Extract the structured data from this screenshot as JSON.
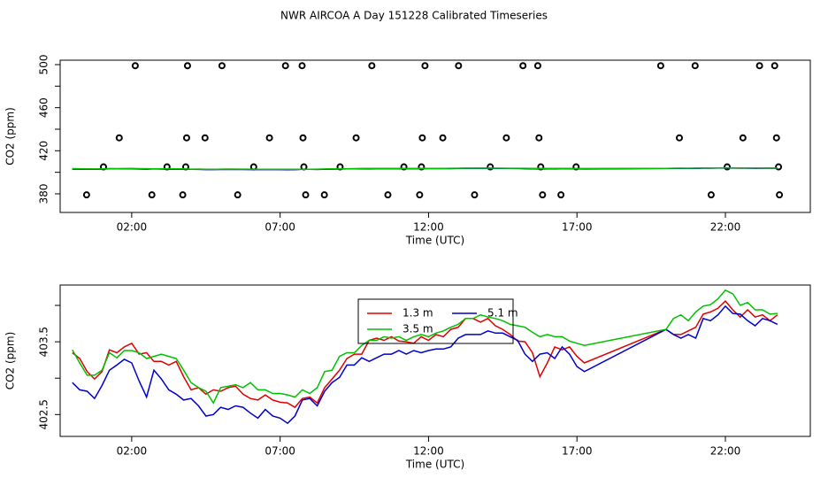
{
  "title": "NWR AIRCOA A  Day 151228  Calibrated Timeseries",
  "chart_data": [
    {
      "type": "scatter",
      "x_label": "Time (UTC)",
      "y_label": "CO2 (ppm)",
      "color": "#000000",
      "x": [
        2.12,
        3.88,
        5.04,
        7.18,
        7.74,
        10.09,
        11.88,
        13.01,
        15.18,
        15.68,
        19.82,
        20.98,
        23.15,
        23.66,
        1.58,
        3.85,
        4.47,
        6.64,
        7.77,
        9.56,
        11.79,
        12.48,
        14.62,
        15.72,
        20.45,
        22.59,
        23.72,
        1.05,
        3.19,
        3.82,
        6.11,
        7.8,
        9.02,
        11.17,
        11.76,
        14.08,
        15.78,
        16.97,
        22.06,
        23.79,
        0.48,
        2.68,
        3.72,
        5.57,
        7.86,
        8.49,
        10.63,
        11.7,
        13.55,
        15.84,
        16.46,
        21.52,
        23.82
      ],
      "values": [
        499,
        499,
        499,
        499,
        499,
        499,
        499,
        499,
        499,
        499,
        499,
        499,
        499,
        499,
        432,
        432,
        432,
        432,
        432,
        432,
        432,
        432,
        432,
        432,
        432,
        432,
        432,
        405,
        405,
        405,
        405,
        405,
        405,
        405,
        405,
        405,
        405,
        405,
        405,
        405,
        379,
        379,
        379,
        379,
        379,
        379,
        379,
        379,
        379,
        379,
        379,
        379,
        379
      ],
      "xlim": [
        -0.41,
        24.86
      ],
      "ylim": [
        362.7,
        504.1
      ],
      "xticks": [
        {
          "value": 2,
          "label": "02:00"
        },
        {
          "value": 7,
          "label": "07:00"
        },
        {
          "value": 12,
          "label": "12:00"
        },
        {
          "value": 17,
          "label": "17:00"
        },
        {
          "value": 22,
          "label": "22:00"
        }
      ],
      "yticks": [
        380,
        420,
        460,
        500
      ],
      "yticks_minor": [
        400,
        440,
        480
      ]
    },
    {
      "type": "line",
      "x_label": "Time (UTC)",
      "y_label": "CO2 (ppm)",
      "legend": "top",
      "x": [
        0,
        0.25,
        0.5,
        0.75,
        1,
        1.25,
        1.5,
        1.75,
        2,
        2.25,
        2.5,
        2.75,
        3,
        3.25,
        3.5,
        3.75,
        4,
        4.25,
        4.5,
        4.75,
        5,
        5.25,
        5.5,
        5.75,
        6,
        6.25,
        6.5,
        6.75,
        7,
        7.25,
        7.5,
        7.75,
        8,
        8.25,
        8.5,
        8.75,
        9,
        9.25,
        9.5,
        9.75,
        10,
        10.25,
        10.5,
        10.75,
        11,
        11.25,
        11.5,
        11.75,
        12,
        12.25,
        12.5,
        12.75,
        13,
        13.25,
        13.5,
        13.75,
        14,
        14.25,
        14.5,
        14.75,
        15,
        15.25,
        15.5,
        15.75,
        16,
        16.25,
        16.5,
        16.75,
        17,
        17.25,
        20,
        20.25,
        20.5,
        20.75,
        21,
        21.25,
        21.5,
        21.75,
        22,
        22.25,
        22.5,
        22.75,
        23,
        23.25,
        23.5,
        23.75
      ],
      "series": [
        {
          "name": "1.3 m",
          "color": "#e00000",
          "values": [
            403.35,
            403.27,
            403.09,
            402.99,
            403.09,
            403.39,
            403.35,
            403.43,
            403.48,
            403.33,
            403.35,
            403.23,
            403.23,
            403.18,
            403.23,
            403.02,
            402.84,
            402.87,
            402.78,
            402.84,
            402.82,
            402.87,
            402.89,
            402.78,
            402.72,
            402.7,
            402.77,
            402.7,
            402.67,
            402.66,
            402.6,
            402.72,
            402.74,
            402.66,
            402.87,
            402.99,
            403.11,
            403.27,
            403.33,
            403.33,
            403.52,
            403.55,
            403.52,
            403.57,
            403.51,
            403.5,
            403.48,
            403.57,
            403.52,
            403.6,
            403.57,
            403.67,
            403.7,
            403.82,
            403.82,
            403.77,
            403.82,
            403.72,
            403.67,
            403.6,
            403.51,
            403.5,
            403.35,
            403.02,
            403.21,
            403.43,
            403.39,
            403.43,
            403.3,
            403.21,
            403.67,
            403.6,
            403.6,
            403.65,
            403.7,
            403.88,
            403.91,
            403.96,
            404.06,
            403.94,
            403.84,
            403.94,
            403.84,
            403.87,
            403.79,
            403.87
          ]
        },
        {
          "name": "5.1 m",
          "color": "#0000cc",
          "values": [
            402.94,
            402.84,
            402.82,
            402.72,
            402.9,
            403.11,
            403.18,
            403.26,
            403.21,
            402.96,
            402.74,
            403.11,
            402.99,
            402.84,
            402.78,
            402.7,
            402.72,
            402.62,
            402.48,
            402.5,
            402.6,
            402.57,
            402.62,
            402.6,
            402.52,
            402.45,
            402.57,
            402.48,
            402.45,
            402.38,
            402.48,
            402.7,
            402.72,
            402.62,
            402.82,
            402.94,
            403.01,
            403.18,
            403.18,
            403.28,
            403.23,
            403.28,
            403.33,
            403.33,
            403.38,
            403.33,
            403.38,
            403.35,
            403.38,
            403.4,
            403.4,
            403.43,
            403.55,
            403.6,
            403.6,
            403.6,
            403.65,
            403.62,
            403.62,
            403.57,
            403.52,
            403.33,
            403.23,
            403.33,
            403.35,
            403.27,
            403.43,
            403.33,
            403.16,
            403.09,
            403.67,
            403.6,
            403.55,
            403.6,
            403.55,
            403.82,
            403.79,
            403.87,
            403.99,
            403.89,
            403.88,
            403.79,
            403.72,
            403.82,
            403.79,
            403.74
          ]
        },
        {
          "name": "3.5 m",
          "color": "#00c000",
          "values": [
            403.39,
            403.21,
            403.04,
            403.04,
            403.11,
            403.35,
            403.28,
            403.38,
            403.38,
            403.35,
            403.27,
            403.3,
            403.33,
            403.3,
            403.27,
            403.11,
            402.94,
            402.87,
            402.82,
            402.66,
            402.87,
            402.89,
            402.91,
            402.87,
            402.94,
            402.84,
            402.84,
            402.79,
            402.79,
            402.77,
            402.74,
            402.84,
            402.79,
            402.87,
            403.09,
            403.11,
            403.3,
            403.35,
            403.35,
            403.45,
            403.52,
            403.52,
            403.57,
            403.55,
            403.57,
            403.52,
            403.57,
            403.6,
            403.57,
            403.62,
            403.65,
            403.7,
            403.74,
            403.82,
            403.82,
            403.87,
            403.84,
            403.82,
            403.79,
            403.74,
            403.72,
            403.7,
            403.63,
            403.57,
            403.6,
            403.57,
            403.57,
            403.51,
            403.48,
            403.45,
            403.67,
            403.82,
            403.87,
            403.79,
            403.91,
            403.99,
            404.01,
            404.09,
            404.21,
            404.16,
            404.0,
            404.04,
            403.94,
            403.94,
            403.88,
            403.89
          ]
        }
      ],
      "xlim": [
        -0.41,
        24.86
      ],
      "ylim": [
        402.2,
        404.28
      ],
      "xticks": [
        {
          "value": 2,
          "label": "02:00"
        },
        {
          "value": 7,
          "label": "07:00"
        },
        {
          "value": 12,
          "label": "12:00"
        },
        {
          "value": 17,
          "label": "17:00"
        },
        {
          "value": 22,
          "label": "22:00"
        }
      ],
      "yticks": [
        402.5,
        403.5
      ],
      "yticks_minor": [
        403.0,
        404.0
      ]
    }
  ]
}
